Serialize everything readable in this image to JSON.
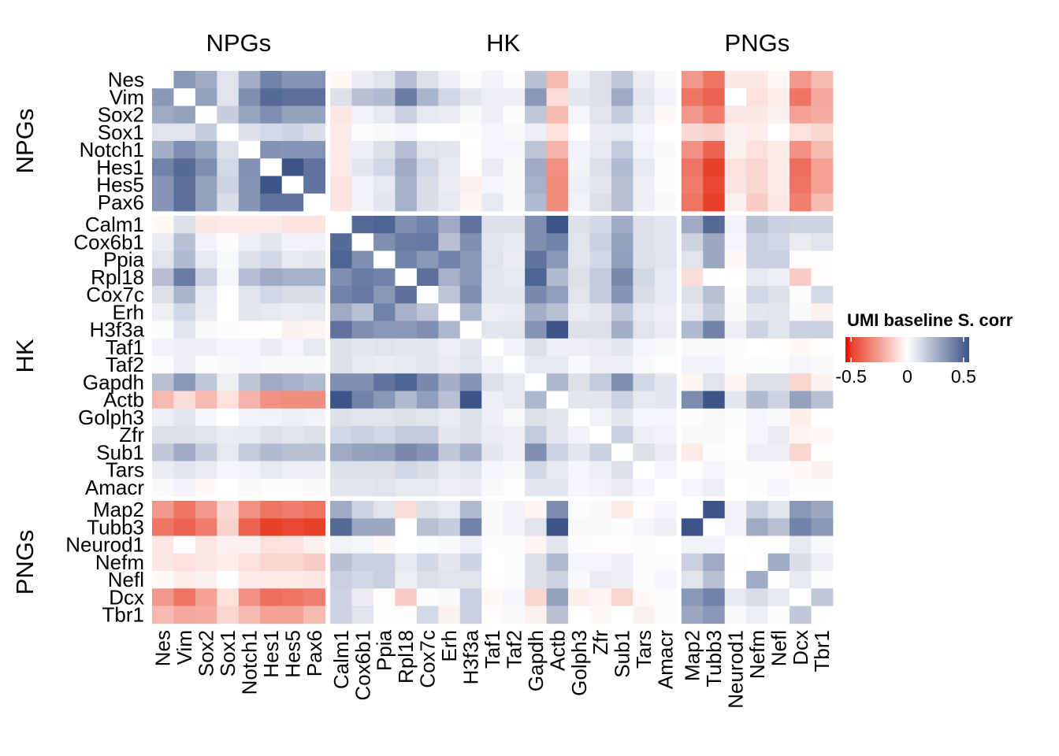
{
  "chart_data": {
    "type": "heatmap",
    "legend": {
      "title": "UMI baseline S. corr",
      "ticks": [
        "-0.5",
        "0",
        "0.5"
      ],
      "tick_values": [
        -0.5,
        0,
        0.5
      ],
      "range": [
        -0.55,
        0.55
      ],
      "placement": "right",
      "low_color": "#E8412A",
      "mid_color": "#FFFFFF",
      "high_color": "#3C5488"
    },
    "groups": [
      {
        "name": "NPGs",
        "genes": [
          "Nes",
          "Vim",
          "Sox2",
          "Sox1",
          "Notch1",
          "Hes1",
          "Hes5",
          "Pax6"
        ]
      },
      {
        "name": "HK",
        "genes": [
          "Calm1",
          "Cox6b1",
          "Ppia",
          "Rpl18",
          "Cox7c",
          "Erh",
          "H3f3a",
          "Taf1",
          "Taf2",
          "Gapdh",
          "Actb",
          "Golph3",
          "Zfr",
          "Sub1",
          "Tars",
          "Amacr"
        ]
      },
      {
        "name": "PNGs",
        "genes": [
          "Map2",
          "Tubb3",
          "Neurod1",
          "Nefm",
          "Nefl",
          "Dcx",
          "Tbr1"
        ]
      }
    ],
    "matrix": [
      [
        null,
        0.33,
        0.27,
        0.09,
        0.26,
        0.4,
        0.34,
        0.34,
        -0.02,
        0.06,
        0.09,
        0.21,
        0.1,
        0.05,
        0.01,
        0.04,
        0.01,
        0.2,
        -0.2,
        0.05,
        0.1,
        0.18,
        0.06,
        0.02,
        -0.3,
        -0.4,
        -0.07,
        -0.07,
        -0.02,
        -0.3,
        -0.2
      ],
      [
        0.33,
        null,
        0.3,
        0.09,
        0.36,
        0.48,
        0.46,
        0.46,
        0.1,
        0.2,
        0.22,
        0.42,
        0.24,
        0.13,
        0.08,
        0.05,
        0.05,
        0.33,
        -0.1,
        0.08,
        0.1,
        0.27,
        0.08,
        0.04,
        -0.4,
        -0.45,
        0,
        -0.09,
        -0.05,
        -0.4,
        -0.25
      ],
      [
        0.27,
        0.3,
        null,
        0.16,
        0.29,
        0.36,
        0.3,
        0.3,
        -0.07,
        0.04,
        0.07,
        0.15,
        0.07,
        0.06,
        0.02,
        0.05,
        0.01,
        0.18,
        -0.2,
        0.03,
        0.09,
        0.16,
        0.06,
        -0.02,
        -0.3,
        -0.38,
        -0.07,
        -0.07,
        -0.04,
        -0.27,
        -0.24
      ],
      [
        0.09,
        0.09,
        0.16,
        null,
        0.1,
        0.12,
        0.14,
        0.11,
        -0.06,
        0.01,
        0.02,
        0.03,
        0,
        0,
        0.01,
        0.03,
        0.02,
        0.05,
        -0.09,
        0,
        0.06,
        0.07,
        0.03,
        0,
        -0.11,
        -0.13,
        -0.04,
        -0.05,
        0,
        -0.09,
        -0.12
      ],
      [
        0.26,
        0.36,
        0.29,
        0.1,
        null,
        0.35,
        0.34,
        0.34,
        -0.06,
        0.05,
        0.1,
        0.21,
        0.09,
        0.08,
        -0.01,
        0.03,
        0.03,
        0.19,
        -0.22,
        0.04,
        0.07,
        0.17,
        0.04,
        0.02,
        -0.32,
        -0.45,
        -0.04,
        -0.09,
        -0.06,
        -0.32,
        -0.2
      ],
      [
        0.4,
        0.48,
        0.36,
        0.12,
        0.35,
        null,
        0.55,
        0.45,
        -0.06,
        0.08,
        0.13,
        0.27,
        0.13,
        0.07,
        -0.01,
        0.06,
        0.02,
        0.27,
        -0.32,
        0.04,
        0.1,
        0.22,
        0.07,
        0.01,
        -0.4,
        -0.55,
        -0.09,
        -0.12,
        -0.06,
        -0.42,
        -0.27
      ],
      [
        0.34,
        0.46,
        0.3,
        0.14,
        0.34,
        0.55,
        null,
        0.45,
        -0.08,
        0.04,
        0.07,
        0.25,
        0.11,
        0.06,
        -0.04,
        0.03,
        0.02,
        0.25,
        -0.33,
        0.05,
        0.08,
        0.2,
        0.05,
        0.01,
        -0.38,
        -0.53,
        -0.08,
        -0.12,
        -0.06,
        -0.4,
        -0.27
      ],
      [
        0.34,
        0.46,
        0.3,
        0.11,
        0.34,
        0.45,
        0.45,
        null,
        -0.08,
        0.04,
        0.08,
        0.25,
        0.11,
        0.07,
        -0.03,
        0.07,
        0.02,
        0.22,
        -0.33,
        0.04,
        0.1,
        0.2,
        0.05,
        0.02,
        -0.4,
        -0.56,
        -0.04,
        -0.15,
        -0.07,
        -0.37,
        -0.2
      ],
      [
        -0.02,
        0.1,
        -0.07,
        -0.06,
        -0.06,
        -0.06,
        -0.08,
        -0.08,
        null,
        0.48,
        0.5,
        0.36,
        0.4,
        0.27,
        0.45,
        0.1,
        0.1,
        0.36,
        0.55,
        0.1,
        0.13,
        0.27,
        0.1,
        0.08,
        0.27,
        0.48,
        0.04,
        0.2,
        0.15,
        0.14,
        0.14
      ],
      [
        0.06,
        0.2,
        0.04,
        0.01,
        0.05,
        0.08,
        0.04,
        0.04,
        0.48,
        null,
        0.36,
        0.42,
        0.43,
        0.2,
        0.36,
        0.08,
        0.07,
        0.36,
        0.4,
        0.09,
        0.15,
        0.3,
        0.1,
        0.08,
        0.14,
        0.28,
        0.03,
        0.15,
        0.13,
        0.06,
        0.09
      ],
      [
        0.09,
        0.22,
        0.07,
        0.02,
        0.1,
        0.13,
        0.07,
        0.08,
        0.5,
        0.36,
        null,
        0.4,
        0.33,
        0.4,
        0.33,
        0.09,
        0.06,
        0.45,
        0.33,
        0.09,
        0.13,
        0.31,
        0.1,
        0.09,
        0.09,
        0.28,
        -0.02,
        0.15,
        0.15,
        -0.01,
        -0.01
      ],
      [
        0.21,
        0.42,
        0.15,
        0.03,
        0.21,
        0.27,
        0.25,
        0.25,
        0.36,
        0.42,
        0.4,
        null,
        0.46,
        0.25,
        0.33,
        0.08,
        0.07,
        0.5,
        0.22,
        0.1,
        0.17,
        0.38,
        0.13,
        0.07,
        -0.1,
        0,
        0,
        0.07,
        0.05,
        -0.15,
        -0.01
      ],
      [
        0.1,
        0.24,
        0.07,
        0,
        0.09,
        0.13,
        0.11,
        0.11,
        0.4,
        0.43,
        0.33,
        0.46,
        null,
        0.19,
        0.36,
        0.08,
        0.08,
        0.38,
        0.31,
        0.09,
        0.17,
        0.34,
        0.11,
        0.07,
        0.1,
        0.2,
        0.01,
        0.13,
        0.1,
        0.01,
        0.12
      ],
      [
        0.05,
        0.13,
        0.06,
        0,
        0.08,
        0.07,
        0.06,
        0.07,
        0.27,
        0.2,
        0.4,
        0.25,
        0.19,
        null,
        0.23,
        0.05,
        0.06,
        0.26,
        0.2,
        0.06,
        0.08,
        0.18,
        0.07,
        0.05,
        0.07,
        0.16,
        0.02,
        0.08,
        0.09,
        0.02,
        -0.04
      ],
      [
        0.01,
        0.08,
        0.02,
        0.01,
        -0.01,
        -0.01,
        -0.04,
        -0.03,
        0.45,
        0.36,
        0.33,
        0.33,
        0.36,
        0.23,
        null,
        0.08,
        0.09,
        0.34,
        0.55,
        0.1,
        0.1,
        0.26,
        0.09,
        0.06,
        0.22,
        0.4,
        0.05,
        0.14,
        0.09,
        0.15,
        0.15
      ],
      [
        0.04,
        0.05,
        0.05,
        0.03,
        0.03,
        0.06,
        0.03,
        0.07,
        0.1,
        0.08,
        0.09,
        0.08,
        0.08,
        0.05,
        0.08,
        null,
        0.04,
        0.1,
        0.05,
        0.05,
        0.06,
        0.08,
        0.03,
        0.02,
        0.02,
        0.02,
        0.01,
        0,
        -0.01,
        -0.02,
        -0.01
      ],
      [
        0.01,
        0.05,
        0.01,
        0.02,
        0.03,
        0.02,
        0.02,
        0.02,
        0.1,
        0.07,
        0.06,
        0.07,
        0.08,
        0.06,
        0.09,
        0.04,
        null,
        0.07,
        0.07,
        0.02,
        0.05,
        0.05,
        0.02,
        -0.01,
        0.04,
        0.04,
        0.01,
        0.01,
        0.01,
        0.03,
        0.02
      ],
      [
        0.2,
        0.33,
        0.18,
        0.05,
        0.19,
        0.27,
        0.25,
        0.22,
        0.36,
        0.36,
        0.45,
        0.5,
        0.38,
        0.26,
        0.34,
        0.1,
        0.07,
        null,
        0.23,
        0.1,
        0.17,
        0.36,
        0.13,
        0.08,
        -0.03,
        0.09,
        -0.03,
        0.1,
        0.1,
        -0.12,
        -0.04
      ],
      [
        -0.2,
        -0.1,
        -0.2,
        -0.09,
        -0.22,
        -0.32,
        -0.33,
        -0.33,
        0.55,
        0.4,
        0.33,
        0.22,
        0.31,
        0.2,
        0.55,
        0.05,
        0.07,
        0.23,
        null,
        0.08,
        0.08,
        0.14,
        0.07,
        0.08,
        0.37,
        0.55,
        0.08,
        0.22,
        0.14,
        0.3,
        0.2
      ],
      [
        0.05,
        0.08,
        0.03,
        0,
        0.04,
        0.04,
        0.05,
        0.04,
        0.1,
        0.09,
        0.09,
        0.1,
        0.09,
        0.06,
        0.1,
        0.05,
        0.02,
        0.1,
        0.08,
        null,
        0.04,
        0.08,
        0.03,
        0.03,
        0.01,
        0.02,
        0.01,
        0.03,
        0.02,
        -0.05,
        0
      ],
      [
        0.1,
        0.1,
        0.09,
        0.06,
        0.07,
        0.1,
        0.08,
        0.1,
        0.13,
        0.15,
        0.13,
        0.17,
        0.17,
        0.08,
        0.1,
        0.06,
        0.05,
        0.17,
        0.08,
        0.04,
        null,
        0.15,
        0.05,
        0.04,
        0.02,
        0.02,
        -0.01,
        0.03,
        0.06,
        -0.03,
        -0.02
      ],
      [
        0.18,
        0.27,
        0.16,
        0.07,
        0.17,
        0.22,
        0.2,
        0.2,
        0.27,
        0.3,
        0.31,
        0.38,
        0.34,
        0.18,
        0.26,
        0.08,
        0.05,
        0.36,
        0.14,
        0.08,
        0.15,
        null,
        0.1,
        0.06,
        -0.06,
        0.01,
        -0.01,
        0.05,
        0.05,
        -0.12,
        0
      ],
      [
        0.06,
        0.08,
        0.06,
        0.03,
        0.04,
        0.07,
        0.05,
        0.05,
        0.1,
        0.1,
        0.1,
        0.13,
        0.11,
        0.07,
        0.09,
        0.03,
        0.02,
        0.13,
        0.07,
        0.03,
        0.05,
        0.1,
        null,
        0.03,
        -0.01,
        0.03,
        0.01,
        0.01,
        0.01,
        -0.02,
        -0.04
      ],
      [
        0.02,
        0.04,
        -0.02,
        0,
        0.02,
        0.01,
        0.01,
        0.02,
        0.08,
        0.08,
        0.09,
        0.07,
        0.07,
        0.05,
        0.06,
        0.02,
        -0.01,
        0.08,
        0.08,
        0.03,
        0.04,
        0.06,
        0.03,
        null,
        0.03,
        0.05,
        0,
        0.01,
        0.03,
        0.01,
        0.01
      ],
      [
        -0.3,
        -0.4,
        -0.3,
        -0.11,
        -0.32,
        -0.4,
        -0.38,
        -0.4,
        0.27,
        0.14,
        0.09,
        -0.1,
        0.1,
        0.07,
        0.22,
        0.02,
        0.04,
        -0.03,
        0.37,
        0.01,
        0.02,
        -0.06,
        -0.01,
        0.03,
        null,
        0.55,
        0.04,
        0.15,
        0.09,
        0.33,
        0.28
      ],
      [
        -0.4,
        -0.45,
        -0.38,
        -0.13,
        -0.45,
        -0.55,
        -0.53,
        -0.56,
        0.48,
        0.28,
        0.28,
        0,
        0.2,
        0.16,
        0.4,
        0.02,
        0.04,
        0.09,
        0.55,
        0.02,
        0.02,
        0.01,
        0.03,
        0.05,
        0.55,
        null,
        0.04,
        0.27,
        0.2,
        0.4,
        0.33
      ],
      [
        -0.07,
        0,
        -0.07,
        -0.04,
        -0.04,
        -0.09,
        -0.08,
        -0.04,
        0.04,
        0.03,
        -0.02,
        0,
        0.01,
        0.02,
        0.05,
        0.01,
        0.01,
        -0.03,
        0.08,
        0.01,
        -0.01,
        -0.01,
        0.01,
        0,
        0.04,
        0.04,
        null,
        -0.01,
        0,
        0.07,
        0.02
      ],
      [
        -0.07,
        -0.09,
        -0.07,
        -0.05,
        -0.09,
        -0.12,
        -0.12,
        -0.15,
        0.2,
        0.15,
        0.15,
        0.07,
        0.13,
        0.08,
        0.14,
        0,
        0.01,
        0.1,
        0.22,
        0.03,
        0.03,
        0.05,
        0.01,
        0.01,
        0.15,
        0.27,
        -0.01,
        null,
        0.27,
        0.11,
        0.05
      ],
      [
        -0.02,
        -0.05,
        -0.04,
        0,
        -0.06,
        -0.06,
        -0.06,
        -0.07,
        0.15,
        0.13,
        0.15,
        0.05,
        0.1,
        0.09,
        0.09,
        -0.01,
        0.01,
        0.1,
        0.14,
        0.02,
        0.06,
        0.05,
        0.01,
        0.03,
        0.09,
        0.2,
        0,
        0.27,
        null,
        0.07,
        0.01
      ],
      [
        -0.3,
        -0.4,
        -0.27,
        -0.09,
        -0.32,
        -0.42,
        -0.4,
        -0.37,
        0.14,
        0.06,
        -0.01,
        -0.15,
        0.01,
        0.02,
        0.15,
        -0.02,
        0.03,
        -0.12,
        0.3,
        -0.05,
        -0.03,
        -0.12,
        -0.02,
        0.01,
        0.33,
        0.4,
        0.07,
        0.11,
        0.07,
        null,
        0.18
      ],
      [
        -0.2,
        -0.25,
        -0.24,
        -0.12,
        -0.2,
        -0.27,
        -0.27,
        -0.2,
        0.14,
        0.09,
        -0.01,
        -0.01,
        0.12,
        -0.04,
        0.15,
        -0.01,
        0.02,
        -0.04,
        0.2,
        0,
        -0.02,
        0,
        -0.04,
        0.01,
        0.28,
        0.33,
        0.02,
        0.05,
        0.01,
        0.18,
        null
      ]
    ]
  }
}
